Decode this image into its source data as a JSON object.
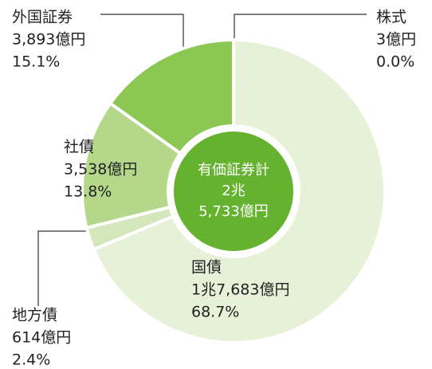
{
  "chart_data": {
    "type": "donut",
    "categories": [
      "株式",
      "国債",
      "地方債",
      "社債",
      "外国証券"
    ],
    "values": [
      3,
      17683,
      614,
      3538,
      3893
    ],
    "value_labels": [
      "3億円",
      "1兆7,683億円",
      "614億円",
      "3,538億円",
      "3,893億円"
    ],
    "percentages": [
      0.0,
      68.7,
      2.4,
      13.8,
      15.1
    ],
    "percentage_labels": [
      "0.0%",
      "68.7%",
      "2.4%",
      "13.8%",
      "15.1%"
    ],
    "colors": [
      "#8cc653",
      "#e7f1d8",
      "#d3e7bb",
      "#b4d78a",
      "#8cc653"
    ],
    "center_text": [
      "有価証券計",
      "2兆",
      "5,733億円"
    ],
    "center_color": "#65b22f"
  }
}
